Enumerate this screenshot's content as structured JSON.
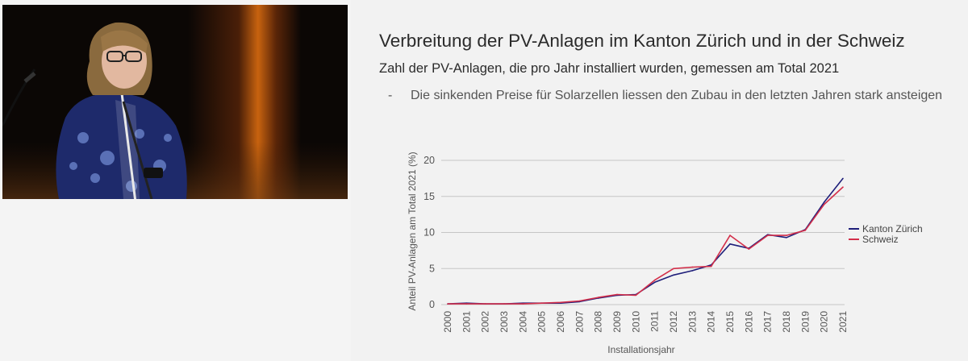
{
  "slide": {
    "title": "Verbreitung der PV-Anlagen im Kanton Zürich und in der Schweiz",
    "subtitle": "Zahl der PV-Anlagen, die pro Jahr installiert wurden, gemessen am Total 2021",
    "bullet_marker": "-",
    "bullet_text": "Die sinkenden Preise für Solarzellen liessen den Zubau in den letzten Jahren stark ansteigen"
  },
  "chart_data": {
    "type": "line",
    "xlabel": "Installationsjahr",
    "ylabel": "Anteil PV-Anlagen am Total 2021 (%)",
    "ylim": [
      0,
      20
    ],
    "yticks": [
      0,
      5,
      10,
      15,
      20
    ],
    "grid": true,
    "legend_position": "right",
    "x": [
      "2000",
      "2001",
      "2002",
      "2003",
      "2004",
      "2005",
      "2006",
      "2007",
      "2008",
      "2009",
      "2010",
      "2011",
      "2012",
      "2013",
      "2014",
      "2015",
      "2016",
      "2017",
      "2018",
      "2019",
      "2020",
      "2021"
    ],
    "series": [
      {
        "name": "Kanton Zürich",
        "color": "#1f1f7a",
        "values": [
          0.1,
          0.2,
          0.1,
          0.1,
          0.2,
          0.2,
          0.2,
          0.4,
          0.9,
          1.3,
          1.4,
          3.1,
          4.1,
          4.7,
          5.5,
          8.4,
          7.8,
          9.7,
          9.3,
          10.4,
          14.2,
          17.5
        ]
      },
      {
        "name": "Schweiz",
        "color": "#d32f4a",
        "values": [
          0.1,
          0.1,
          0.1,
          0.1,
          0.1,
          0.2,
          0.3,
          0.5,
          1.0,
          1.4,
          1.3,
          3.4,
          5.0,
          5.2,
          5.3,
          9.6,
          7.7,
          9.6,
          9.6,
          10.3,
          13.9,
          16.3
        ]
      }
    ]
  }
}
